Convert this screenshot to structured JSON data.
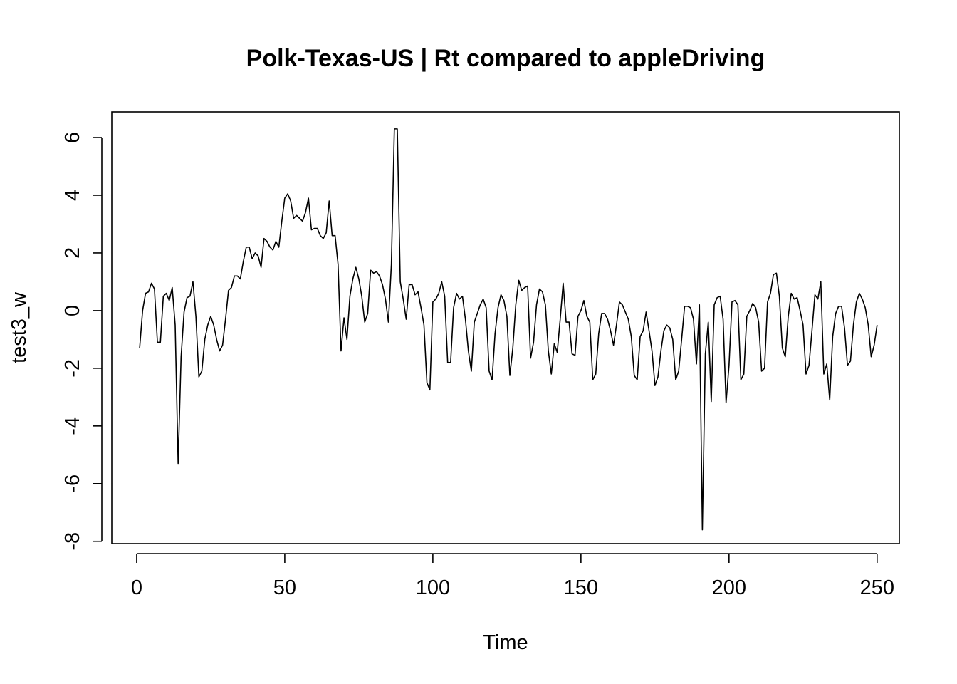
{
  "chart_data": {
    "type": "line",
    "title": "Polk-Texas-US | Rt compared to appleDriving",
    "xlabel": "Time",
    "ylabel": "test3_w",
    "xlim": [
      -8.4,
      257.5
    ],
    "ylim": [
      -8.08,
      6.89
    ],
    "xticks": [
      0,
      50,
      100,
      150,
      200,
      250
    ],
    "yticks": [
      -8,
      -6,
      -4,
      -2,
      0,
      2,
      4,
      6
    ],
    "grid": false,
    "legend": "none",
    "x_start": 1,
    "series": [
      {
        "color": "#000000",
        "values": [
          -1.3,
          0.0,
          0.6,
          0.65,
          0.95,
          0.75,
          -1.1,
          -1.1,
          0.5,
          0.6,
          0.35,
          0.8,
          -0.5,
          -5.3,
          -1.6,
          -0.05,
          0.45,
          0.5,
          1.0,
          -0.2,
          -2.3,
          -2.1,
          -1.0,
          -0.5,
          -0.2,
          -0.5,
          -1.0,
          -1.4,
          -1.2,
          -0.3,
          0.7,
          0.8,
          1.2,
          1.2,
          1.1,
          1.7,
          2.2,
          2.2,
          1.8,
          2.0,
          1.9,
          1.5,
          2.5,
          2.4,
          2.2,
          2.1,
          2.4,
          2.2,
          3.1,
          3.9,
          4.05,
          3.8,
          3.2,
          3.3,
          3.2,
          3.1,
          3.4,
          3.9,
          2.8,
          2.85,
          2.85,
          2.6,
          2.5,
          2.7,
          3.8,
          2.6,
          2.6,
          1.6,
          -1.4,
          -0.25,
          -1.0,
          0.5,
          1.1,
          1.5,
          1.1,
          0.5,
          -0.4,
          -0.1,
          1.4,
          1.3,
          1.35,
          1.2,
          0.9,
          0.4,
          -0.4,
          1.6,
          6.3,
          6.3,
          1.0,
          0.4,
          -0.3,
          0.9,
          0.9,
          0.55,
          0.65,
          0.1,
          -0.5,
          -2.5,
          -2.75,
          0.3,
          0.4,
          0.6,
          1.0,
          0.5,
          -1.8,
          -1.8,
          0.1,
          0.6,
          0.4,
          0.5,
          -0.3,
          -1.4,
          -2.1,
          -0.4,
          -0.1,
          0.2,
          0.4,
          0.1,
          -2.1,
          -2.4,
          -0.8,
          0.1,
          0.55,
          0.35,
          -0.2,
          -2.25,
          -1.3,
          0.2,
          1.05,
          0.7,
          0.8,
          0.85,
          -1.65,
          -1.1,
          0.2,
          0.75,
          0.65,
          0.2,
          -1.4,
          -2.2,
          -1.15,
          -1.45,
          -0.3,
          0.95,
          -0.4,
          -0.4,
          -1.5,
          -1.55,
          -0.2,
          0.0,
          0.35,
          -0.2,
          -0.4,
          -2.4,
          -2.2,
          -0.8,
          -0.1,
          -0.1,
          -0.3,
          -0.7,
          -1.2,
          -0.5,
          0.3,
          0.2,
          -0.05,
          -0.3,
          -0.9,
          -2.25,
          -2.4,
          -0.9,
          -0.7,
          -0.05,
          -0.7,
          -1.4,
          -2.6,
          -2.3,
          -1.4,
          -0.7,
          -0.5,
          -0.6,
          -1.0,
          -2.4,
          -2.1,
          -1.0,
          0.15,
          0.15,
          0.1,
          -0.3,
          -1.85,
          0.2,
          -7.6,
          -1.5,
          -0.4,
          -3.15,
          0.2,
          0.45,
          0.5,
          -0.3,
          -3.2,
          -1.9,
          0.3,
          0.35,
          0.2,
          -2.4,
          -2.2,
          -0.2,
          0.0,
          0.25,
          0.1,
          -0.4,
          -2.1,
          -2.0,
          0.3,
          0.6,
          1.25,
          1.3,
          0.5,
          -1.3,
          -1.6,
          -0.2,
          0.6,
          0.4,
          0.45,
          0.0,
          -0.5,
          -2.2,
          -1.9,
          -0.7,
          0.55,
          0.4,
          1.0,
          -2.2,
          -1.85,
          -3.1,
          -0.9,
          -0.1,
          0.15,
          0.15,
          -0.6,
          -1.9,
          -1.75,
          -0.5,
          0.3,
          0.6,
          0.4,
          0.1,
          -0.5,
          -1.6,
          -1.2,
          -0.5
        ]
      }
    ]
  }
}
